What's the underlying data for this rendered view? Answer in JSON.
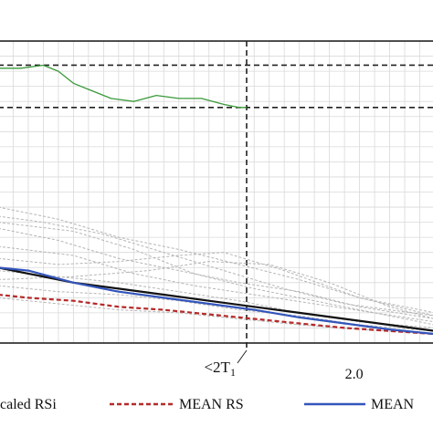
{
  "chart_data": {
    "type": "line",
    "title": "",
    "xlabel": "",
    "ylabel": "",
    "x_ticks": [
      {
        "value": 2.0,
        "label": "2.0"
      }
    ],
    "xlim": [
      0.0,
      2.9
    ],
    "ylim": [
      0.0,
      1.0
    ],
    "grid": true,
    "legend_position": "bottom",
    "annotations": [
      {
        "text": "<2T",
        "subscript": "1",
        "x": 1.65
      }
    ],
    "reference_lines": [
      {
        "orientation": "horizontal",
        "y": 0.92,
        "style": "dashed",
        "color": "#222222"
      },
      {
        "orientation": "horizontal",
        "y": 0.78,
        "style": "dashed",
        "color": "#222222"
      },
      {
        "orientation": "vertical",
        "x": 1.65,
        "style": "dashed",
        "color": "#222222"
      }
    ],
    "series": [
      {
        "role": "ratio",
        "color": "#3a9a3a",
        "style": "solid",
        "x": [
          0.0,
          0.15,
          0.3,
          0.4,
          0.45,
          0.5,
          0.6,
          0.75,
          0.9,
          1.05,
          1.2,
          1.35,
          1.5,
          1.6,
          1.65
        ],
        "y": [
          0.91,
          0.91,
          0.92,
          0.9,
          0.88,
          0.86,
          0.84,
          0.81,
          0.8,
          0.82,
          0.81,
          0.81,
          0.79,
          0.78,
          0.78
        ]
      },
      {
        "name": "Scaled RSi",
        "color": "#b5b5b5",
        "style": "dashed",
        "members": [
          {
            "x": [
              0.0,
              0.4,
              0.8,
              1.2,
              1.6,
              2.0,
              2.4,
              2.9
            ],
            "y": [
              0.45,
              0.41,
              0.35,
              0.31,
              0.26,
              0.21,
              0.15,
              0.1
            ]
          },
          {
            "x": [
              0.0,
              0.3,
              0.7,
              1.1,
              1.5,
              1.9,
              2.3,
              2.9
            ],
            "y": [
              0.42,
              0.4,
              0.36,
              0.3,
              0.24,
              0.18,
              0.13,
              0.09
            ]
          },
          {
            "x": [
              0.0,
              0.4,
              0.8,
              1.2,
              1.6,
              2.0,
              2.4,
              2.9
            ],
            "y": [
              0.38,
              0.34,
              0.28,
              0.24,
              0.2,
              0.17,
              0.12,
              0.08
            ]
          },
          {
            "x": [
              0.0,
              0.5,
              0.9,
              1.3,
              1.7,
              2.1,
              2.5,
              2.9
            ],
            "y": [
              0.4,
              0.37,
              0.31,
              0.23,
              0.18,
              0.14,
              0.1,
              0.06
            ]
          },
          {
            "x": [
              0.0,
              0.4,
              0.8,
              1.2,
              1.5,
              1.9,
              2.4,
              2.9
            ],
            "y": [
              0.28,
              0.26,
              0.27,
              0.29,
              0.3,
              0.24,
              0.15,
              0.09
            ]
          },
          {
            "x": [
              0.0,
              0.4,
              0.8,
              1.2,
              1.6,
              2.0,
              2.4,
              2.9
            ],
            "y": [
              0.24,
              0.22,
              0.2,
              0.17,
              0.14,
              0.1,
              0.07,
              0.05
            ]
          },
          {
            "x": [
              0.0,
              0.4,
              0.8,
              1.2,
              1.6,
              2.0,
              2.4,
              2.9
            ],
            "y": [
              0.19,
              0.17,
              0.16,
              0.14,
              0.11,
              0.09,
              0.06,
              0.04
            ]
          },
          {
            "x": [
              0.0,
              0.4,
              0.8,
              1.2,
              1.6,
              2.0,
              2.4,
              2.9
            ],
            "y": [
              0.15,
              0.13,
              0.11,
              0.1,
              0.08,
              0.06,
              0.045,
              0.03
            ]
          },
          {
            "x": [
              0.0,
              0.5,
              0.9,
              1.3,
              1.7,
              2.1,
              2.5,
              2.9
            ],
            "y": [
              0.32,
              0.29,
              0.23,
              0.19,
              0.16,
              0.13,
              0.1,
              0.07
            ]
          },
          {
            "x": [
              0.0,
              0.5,
              1.0,
              1.4,
              1.8,
              2.2,
              2.6,
              2.9
            ],
            "y": [
              0.21,
              0.22,
              0.24,
              0.27,
              0.26,
              0.2,
              0.12,
              0.08
            ]
          }
        ]
      },
      {
        "name": "MEAN RS",
        "color": "#b52a2a",
        "style": "dashed",
        "x": [
          0.0,
          0.2,
          0.5,
          0.8,
          1.1,
          1.4,
          1.7,
          2.0,
          2.3,
          2.6,
          2.9
        ],
        "y": [
          0.16,
          0.15,
          0.14,
          0.12,
          0.11,
          0.095,
          0.08,
          0.065,
          0.05,
          0.04,
          0.03
        ]
      },
      {
        "name": "",
        "color": "#111111",
        "style": "solid",
        "x": [
          0.0,
          0.2,
          0.5,
          0.8,
          1.1,
          1.4,
          1.7,
          2.0,
          2.3,
          2.6,
          2.9
        ],
        "y": [
          0.25,
          0.23,
          0.2,
          0.18,
          0.16,
          0.14,
          0.12,
          0.1,
          0.08,
          0.06,
          0.04
        ]
      },
      {
        "name": "MEAN",
        "color": "#3355bb",
        "style": "solid",
        "x": [
          0.0,
          0.2,
          0.35,
          0.5,
          0.8,
          1.1,
          1.4,
          1.7,
          2.0,
          2.3,
          2.6,
          2.9
        ],
        "y": [
          0.25,
          0.24,
          0.22,
          0.2,
          0.17,
          0.15,
          0.13,
          0.11,
          0.085,
          0.065,
          0.045,
          0.03
        ]
      }
    ],
    "legend": [
      {
        "label": "caled RSi",
        "color": "#b5b5b5",
        "style": "dashed"
      },
      {
        "label": "MEAN RS",
        "color": "#b52a2a",
        "style": "dashed"
      },
      {
        "label": "MEAN",
        "color": "#3355bb",
        "style": "solid"
      }
    ]
  }
}
